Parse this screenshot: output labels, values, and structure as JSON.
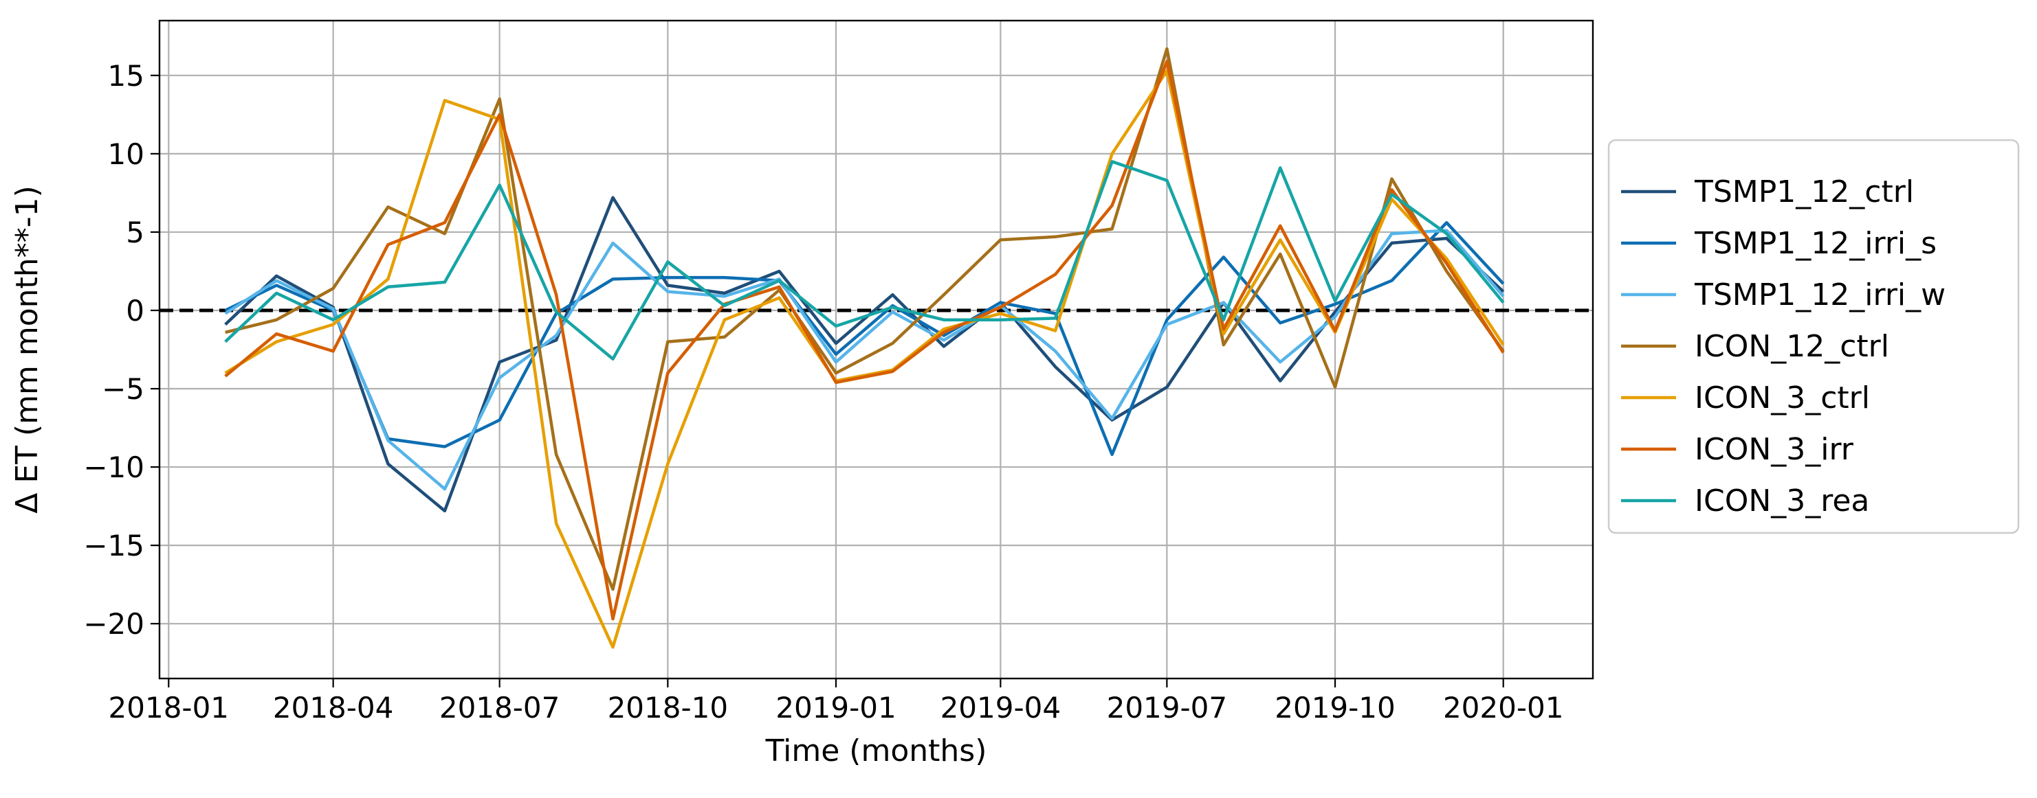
{
  "chart_data": {
    "type": "line",
    "title": "",
    "xlabel": "Time (months)",
    "ylabel": "Δ ET (mm month**-1)",
    "x": [
      "2018-02",
      "2018-03",
      "2018-04",
      "2018-05",
      "2018-06",
      "2018-07",
      "2018-08",
      "2018-09",
      "2018-10",
      "2018-11",
      "2018-12",
      "2019-01",
      "2019-02",
      "2019-03",
      "2019-04",
      "2019-05",
      "2019-06",
      "2019-07",
      "2019-08",
      "2019-09",
      "2019-10",
      "2019-11",
      "2019-12",
      "2020-01"
    ],
    "xlim": [
      "2017-12-27",
      "2020-02-19"
    ],
    "ylim": [
      -23.5,
      18.5
    ],
    "xticks": [
      "2018-01",
      "2018-04",
      "2018-07",
      "2018-10",
      "2019-01",
      "2019-04",
      "2019-07",
      "2019-10",
      "2020-01"
    ],
    "yticks": [
      15,
      10,
      5,
      0,
      -5,
      -10,
      -15,
      -20
    ],
    "ytick_labels": [
      "15",
      "10",
      "5",
      "0",
      "−5",
      "−10",
      "−15",
      "−20"
    ],
    "grid": true,
    "legend_position": "outside right",
    "reference_line": {
      "y": 0,
      "style": "dashed",
      "color": "#000000"
    },
    "series": [
      {
        "name": "TSMP1_12_ctrl",
        "color": "#1f4e79",
        "values": [
          -0.9,
          2.2,
          0.2,
          -9.8,
          -12.8,
          -3.3,
          -1.9,
          7.2,
          1.6,
          1.1,
          2.5,
          -2.1,
          1.0,
          -2.3,
          0.5,
          -3.6,
          -7.0,
          -4.9,
          0.5,
          -4.5,
          -0.1,
          4.3,
          4.6,
          1.2
        ]
      },
      {
        "name": "TSMP1_12_irri_s",
        "color": "#0d6eb2",
        "values": [
          0.0,
          1.6,
          0.0,
          -8.2,
          -8.7,
          -7.0,
          -0.2,
          2.0,
          2.1,
          2.1,
          1.9,
          -2.8,
          0.3,
          -1.6,
          0.5,
          -0.2,
          -9.2,
          -0.6,
          3.4,
          -0.8,
          0.4,
          1.9,
          5.6,
          1.7
        ]
      },
      {
        "name": "TSMP1_12_irri_w",
        "color": "#56b4e9",
        "values": [
          -0.2,
          1.9,
          0.1,
          -8.3,
          -11.4,
          -4.3,
          -1.6,
          4.3,
          1.2,
          0.9,
          2.0,
          -3.3,
          -0.1,
          -1.9,
          0.3,
          -2.6,
          -6.9,
          -0.9,
          0.5,
          -3.3,
          -0.4,
          4.9,
          5.1,
          0.9
        ]
      },
      {
        "name": "ICON_12_ctrl",
        "color": "#a5701a",
        "values": [
          -1.4,
          -0.6,
          1.4,
          6.6,
          4.9,
          13.5,
          -9.2,
          -17.8,
          -2.0,
          -1.7,
          1.3,
          -4.0,
          -2.1,
          1.0,
          4.5,
          4.7,
          5.2,
          16.7,
          -2.2,
          3.6,
          -4.9,
          8.4,
          2.5,
          -2.6
        ]
      },
      {
        "name": "ICON_3_ctrl",
        "color": "#e69f00",
        "values": [
          -4.0,
          -2.0,
          -0.9,
          2.0,
          13.4,
          12.2,
          -13.6,
          -21.5,
          -9.8,
          -0.6,
          0.8,
          -4.5,
          -3.8,
          -1.2,
          -0.2,
          -1.3,
          10.0,
          15.3,
          -1.5,
          4.5,
          -1.4,
          7.1,
          3.3,
          -2.2
        ]
      },
      {
        "name": "ICON_3_irr",
        "color": "#d55e00",
        "values": [
          -4.2,
          -1.5,
          -2.6,
          4.2,
          5.6,
          12.5,
          1.0,
          -19.7,
          -4.0,
          0.4,
          1.5,
          -4.6,
          -3.9,
          -1.4,
          0.2,
          2.3,
          6.7,
          15.9,
          -1.2,
          5.4,
          -1.3,
          7.7,
          3.0,
          -2.7
        ]
      },
      {
        "name": "ICON_3_rea",
        "color": "#17a5a5",
        "values": [
          -2.0,
          1.1,
          -0.6,
          1.5,
          1.8,
          8.0,
          -0.1,
          -3.1,
          3.1,
          0.3,
          1.9,
          -1.0,
          0.2,
          -0.6,
          -0.6,
          -0.5,
          9.5,
          8.3,
          -0.6,
          9.1,
          0.6,
          7.4,
          4.9,
          0.5
        ]
      }
    ]
  }
}
